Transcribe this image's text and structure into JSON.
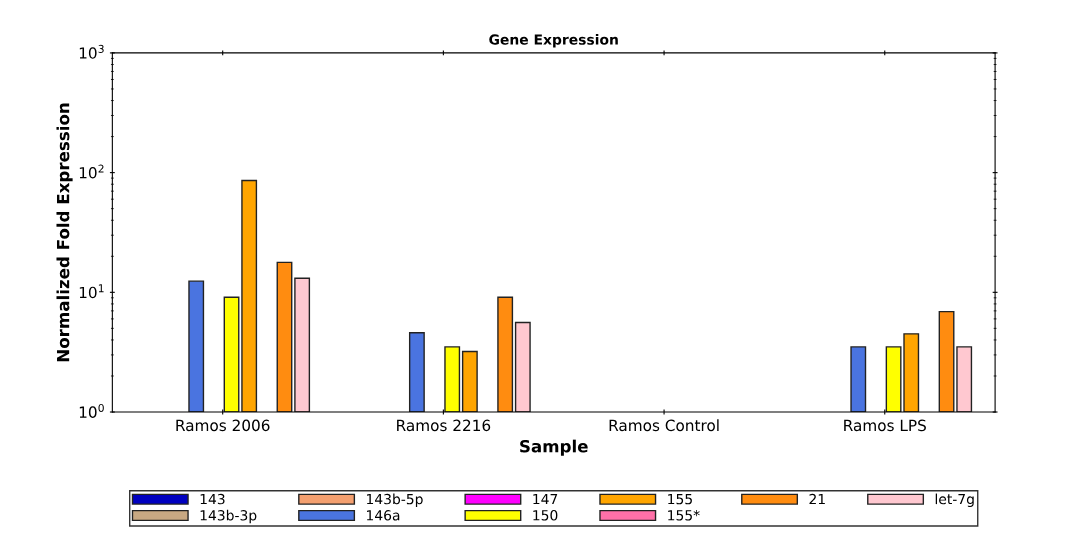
{
  "chart_data": {
    "type": "bar",
    "title": "Gene Expression",
    "xlabel": "Sample",
    "ylabel": "Normalized Fold Expression",
    "log": true,
    "grid": false,
    "legend": "bottom",
    "ylim": [
      1,
      1000
    ],
    "yticks": [
      {
        "value": 1,
        "label": "10$^{0}$"
      },
      {
        "value": 10,
        "label": "10$^{1}$"
      },
      {
        "value": 100,
        "label": "10$^{2}$"
      },
      {
        "value": 1000,
        "label": "10$^{3}$"
      }
    ],
    "categories": [
      "Ramos 2006",
      "Ramos 2216",
      "Ramos Control",
      "Ramos LPS"
    ],
    "series": [
      {
        "name": "143",
        "color": "#0000c0",
        "values": [
          null,
          null,
          null,
          null
        ]
      },
      {
        "name": "143b-3p",
        "color": "#c8a882",
        "values": [
          null,
          null,
          null,
          null
        ]
      },
      {
        "name": "143b-5p",
        "color": "#f4a070",
        "values": [
          null,
          null,
          null,
          null
        ]
      },
      {
        "name": "146a",
        "color": "#4a74e0",
        "values": [
          12.4,
          4.6,
          null,
          3.5
        ]
      },
      {
        "name": "147",
        "color": "#ff00ff",
        "values": [
          null,
          null,
          null,
          null
        ]
      },
      {
        "name": "150",
        "color": "#ffff00",
        "values": [
          9.1,
          3.5,
          null,
          3.5
        ]
      },
      {
        "name": "155",
        "color": "#ffa500",
        "values": [
          86,
          3.2,
          null,
          4.5
        ]
      },
      {
        "name": "155*",
        "color": "#ff70a8",
        "values": [
          null,
          null,
          null,
          null
        ]
      },
      {
        "name": "21",
        "color": "#ff8c10",
        "values": [
          17.8,
          9.1,
          null,
          6.9
        ]
      },
      {
        "name": "let-7g",
        "color": "#ffc8d0",
        "values": [
          13.1,
          5.6,
          null,
          3.5
        ]
      }
    ]
  }
}
